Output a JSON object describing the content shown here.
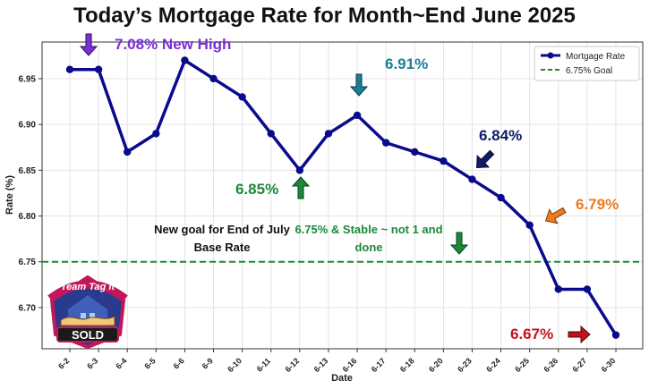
{
  "title": "Today’s Mortgage Rate for Month~End June 2025",
  "annotations": {
    "new_high": "7.08% New High",
    "peak_691": "6.91%",
    "point_684": "6.84%",
    "low_685": "6.85%",
    "point_679": "6.79%",
    "end_667": "6.67%",
    "goal_note": "New goal for End of July Base Rate",
    "stable_note": "6.75% & Stable ~ not 1 and done",
    "logo_text_top": "Team Tag It",
    "logo_text_bottom": "SOLD"
  },
  "colors": {
    "series": "#0a0a8c",
    "goal": "#1f8a2e",
    "purple": "#7b2fd6",
    "teal": "#1a7f95",
    "navy": "#101a66",
    "green": "#1a8a3a",
    "orange": "#f07a1c",
    "red": "#c0141a"
  },
  "chart_data": {
    "type": "line",
    "title": "Today’s Mortgage Rate for Month~End June 2025",
    "xlabel": "Date",
    "ylabel": "Rate (%)",
    "categories": [
      "6-2",
      "6-3",
      "6-4",
      "6-5",
      "6-6",
      "6-9",
      "6-10",
      "6-11",
      "6-12",
      "6-13",
      "6-16",
      "6-17",
      "6-18",
      "6-20",
      "6-23",
      "6-24",
      "6-25",
      "6-26",
      "6-27",
      "6-30"
    ],
    "series": [
      {
        "name": "Mortgage Rate",
        "values": [
          6.96,
          6.96,
          6.87,
          6.89,
          6.97,
          6.95,
          6.93,
          6.89,
          6.85,
          6.89,
          6.91,
          6.88,
          6.87,
          6.86,
          6.84,
          6.82,
          6.79,
          6.72,
          6.72,
          6.67
        ]
      }
    ],
    "goal": {
      "name": "6.75% Goal",
      "value": 6.75
    },
    "yticks": [
      6.7,
      6.75,
      6.8,
      6.85,
      6.9,
      6.95
    ],
    "ylim": [
      6.655,
      6.99
    ],
    "grid": true,
    "legend": "top-right"
  }
}
